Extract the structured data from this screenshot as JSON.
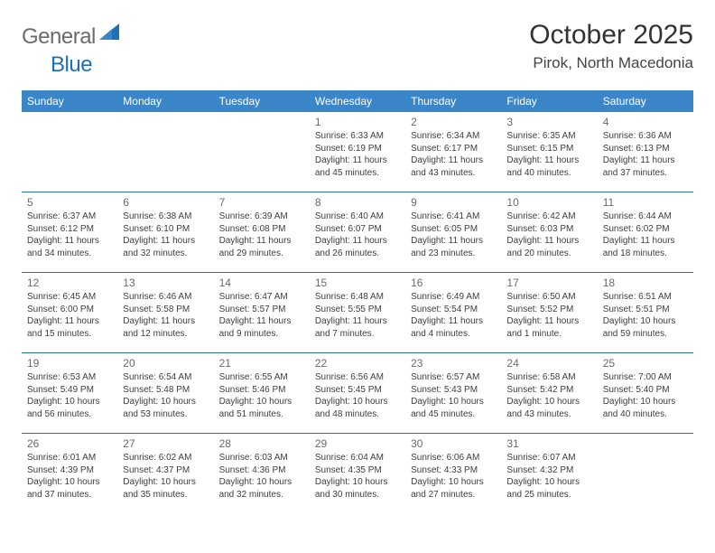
{
  "logo": {
    "word1": "General",
    "word2": "Blue"
  },
  "header": {
    "monthTitle": "October 2025",
    "location": "Pirok, North Macedonia"
  },
  "style": {
    "headerBg": "#3a86c8",
    "headerText": "#ffffff",
    "borderColor": "#2f6fa8",
    "dayNumColor": "#6a6a6a",
    "detailColor": "#3e3e3e",
    "titleColor": "#333333",
    "logoGrayColor": "#6b6b6b",
    "logoBlueColor": "#1f70b8",
    "cellMinHeight": 88,
    "pageWidth": 792,
    "pageHeight": 612,
    "weekdayFontSize": 12,
    "dayNumFontSize": 12,
    "detailFontSize": 10,
    "monthTitleFontSize": 30,
    "locationFontSize": 17
  },
  "weekdays": [
    "Sunday",
    "Monday",
    "Tuesday",
    "Wednesday",
    "Thursday",
    "Friday",
    "Saturday"
  ],
  "weeks": [
    [
      {
        "num": "",
        "sunrise": "",
        "sunset": "",
        "daylight": "",
        "empty": true
      },
      {
        "num": "",
        "sunrise": "",
        "sunset": "",
        "daylight": "",
        "empty": true
      },
      {
        "num": "",
        "sunrise": "",
        "sunset": "",
        "daylight": "",
        "empty": true
      },
      {
        "num": "1",
        "sunrise": "Sunrise: 6:33 AM",
        "sunset": "Sunset: 6:19 PM",
        "daylight": "Daylight: 11 hours and 45 minutes."
      },
      {
        "num": "2",
        "sunrise": "Sunrise: 6:34 AM",
        "sunset": "Sunset: 6:17 PM",
        "daylight": "Daylight: 11 hours and 43 minutes."
      },
      {
        "num": "3",
        "sunrise": "Sunrise: 6:35 AM",
        "sunset": "Sunset: 6:15 PM",
        "daylight": "Daylight: 11 hours and 40 minutes."
      },
      {
        "num": "4",
        "sunrise": "Sunrise: 6:36 AM",
        "sunset": "Sunset: 6:13 PM",
        "daylight": "Daylight: 11 hours and 37 minutes."
      }
    ],
    [
      {
        "num": "5",
        "sunrise": "Sunrise: 6:37 AM",
        "sunset": "Sunset: 6:12 PM",
        "daylight": "Daylight: 11 hours and 34 minutes."
      },
      {
        "num": "6",
        "sunrise": "Sunrise: 6:38 AM",
        "sunset": "Sunset: 6:10 PM",
        "daylight": "Daylight: 11 hours and 32 minutes."
      },
      {
        "num": "7",
        "sunrise": "Sunrise: 6:39 AM",
        "sunset": "Sunset: 6:08 PM",
        "daylight": "Daylight: 11 hours and 29 minutes."
      },
      {
        "num": "8",
        "sunrise": "Sunrise: 6:40 AM",
        "sunset": "Sunset: 6:07 PM",
        "daylight": "Daylight: 11 hours and 26 minutes."
      },
      {
        "num": "9",
        "sunrise": "Sunrise: 6:41 AM",
        "sunset": "Sunset: 6:05 PM",
        "daylight": "Daylight: 11 hours and 23 minutes."
      },
      {
        "num": "10",
        "sunrise": "Sunrise: 6:42 AM",
        "sunset": "Sunset: 6:03 PM",
        "daylight": "Daylight: 11 hours and 20 minutes."
      },
      {
        "num": "11",
        "sunrise": "Sunrise: 6:44 AM",
        "sunset": "Sunset: 6:02 PM",
        "daylight": "Daylight: 11 hours and 18 minutes."
      }
    ],
    [
      {
        "num": "12",
        "sunrise": "Sunrise: 6:45 AM",
        "sunset": "Sunset: 6:00 PM",
        "daylight": "Daylight: 11 hours and 15 minutes."
      },
      {
        "num": "13",
        "sunrise": "Sunrise: 6:46 AM",
        "sunset": "Sunset: 5:58 PM",
        "daylight": "Daylight: 11 hours and 12 minutes."
      },
      {
        "num": "14",
        "sunrise": "Sunrise: 6:47 AM",
        "sunset": "Sunset: 5:57 PM",
        "daylight": "Daylight: 11 hours and 9 minutes."
      },
      {
        "num": "15",
        "sunrise": "Sunrise: 6:48 AM",
        "sunset": "Sunset: 5:55 PM",
        "daylight": "Daylight: 11 hours and 7 minutes."
      },
      {
        "num": "16",
        "sunrise": "Sunrise: 6:49 AM",
        "sunset": "Sunset: 5:54 PM",
        "daylight": "Daylight: 11 hours and 4 minutes."
      },
      {
        "num": "17",
        "sunrise": "Sunrise: 6:50 AM",
        "sunset": "Sunset: 5:52 PM",
        "daylight": "Daylight: 11 hours and 1 minute."
      },
      {
        "num": "18",
        "sunrise": "Sunrise: 6:51 AM",
        "sunset": "Sunset: 5:51 PM",
        "daylight": "Daylight: 10 hours and 59 minutes."
      }
    ],
    [
      {
        "num": "19",
        "sunrise": "Sunrise: 6:53 AM",
        "sunset": "Sunset: 5:49 PM",
        "daylight": "Daylight: 10 hours and 56 minutes."
      },
      {
        "num": "20",
        "sunrise": "Sunrise: 6:54 AM",
        "sunset": "Sunset: 5:48 PM",
        "daylight": "Daylight: 10 hours and 53 minutes."
      },
      {
        "num": "21",
        "sunrise": "Sunrise: 6:55 AM",
        "sunset": "Sunset: 5:46 PM",
        "daylight": "Daylight: 10 hours and 51 minutes."
      },
      {
        "num": "22",
        "sunrise": "Sunrise: 6:56 AM",
        "sunset": "Sunset: 5:45 PM",
        "daylight": "Daylight: 10 hours and 48 minutes."
      },
      {
        "num": "23",
        "sunrise": "Sunrise: 6:57 AM",
        "sunset": "Sunset: 5:43 PM",
        "daylight": "Daylight: 10 hours and 45 minutes."
      },
      {
        "num": "24",
        "sunrise": "Sunrise: 6:58 AM",
        "sunset": "Sunset: 5:42 PM",
        "daylight": "Daylight: 10 hours and 43 minutes."
      },
      {
        "num": "25",
        "sunrise": "Sunrise: 7:00 AM",
        "sunset": "Sunset: 5:40 PM",
        "daylight": "Daylight: 10 hours and 40 minutes."
      }
    ],
    [
      {
        "num": "26",
        "sunrise": "Sunrise: 6:01 AM",
        "sunset": "Sunset: 4:39 PM",
        "daylight": "Daylight: 10 hours and 37 minutes."
      },
      {
        "num": "27",
        "sunrise": "Sunrise: 6:02 AM",
        "sunset": "Sunset: 4:37 PM",
        "daylight": "Daylight: 10 hours and 35 minutes."
      },
      {
        "num": "28",
        "sunrise": "Sunrise: 6:03 AM",
        "sunset": "Sunset: 4:36 PM",
        "daylight": "Daylight: 10 hours and 32 minutes."
      },
      {
        "num": "29",
        "sunrise": "Sunrise: 6:04 AM",
        "sunset": "Sunset: 4:35 PM",
        "daylight": "Daylight: 10 hours and 30 minutes."
      },
      {
        "num": "30",
        "sunrise": "Sunrise: 6:06 AM",
        "sunset": "Sunset: 4:33 PM",
        "daylight": "Daylight: 10 hours and 27 minutes."
      },
      {
        "num": "31",
        "sunrise": "Sunrise: 6:07 AM",
        "sunset": "Sunset: 4:32 PM",
        "daylight": "Daylight: 10 hours and 25 minutes."
      },
      {
        "num": "",
        "sunrise": "",
        "sunset": "",
        "daylight": "",
        "empty": true
      }
    ]
  ]
}
